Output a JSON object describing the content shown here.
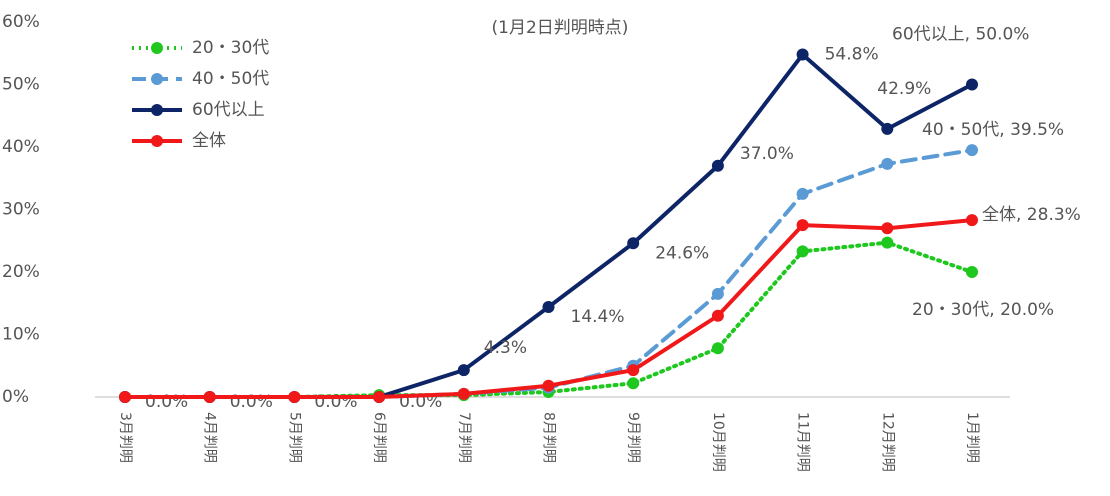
{
  "chart_data": {
    "type": "line",
    "title": "(1月2日判明時点)",
    "categories": [
      "3月判明",
      "4月判明",
      "5月判明",
      "6月判明",
      "7月判明",
      "8月判明",
      "9月判明",
      "10月判明",
      "11月判明",
      "12月判明",
      "1月判明"
    ],
    "ylim": [
      0,
      60
    ],
    "yticks": [
      {
        "value": 0,
        "label": "0%"
      },
      {
        "value": 10,
        "label": "10%"
      },
      {
        "value": 20,
        "label": "20%"
      },
      {
        "value": 30,
        "label": "30%"
      },
      {
        "value": 40,
        "label": "40%"
      },
      {
        "value": 50,
        "label": "50%"
      },
      {
        "value": 60,
        "label": "60%"
      }
    ],
    "legend": "top-left",
    "series": [
      {
        "name": "20・30代",
        "color": "#1ec81e",
        "line_style": "dotted",
        "values": [
          0,
          0,
          0,
          0.3,
          0.3,
          0.8,
          2.2,
          7.8,
          23.3,
          24.7,
          20.0
        ],
        "value_labels": [
          null,
          null,
          null,
          null,
          null,
          null,
          null,
          null,
          null,
          null,
          "20・30代, 20.0%"
        ]
      },
      {
        "name": "40・50代",
        "color": "#5b9bd5",
        "line_style": "dashed",
        "values": [
          0,
          0,
          0,
          0,
          0.5,
          1.5,
          5.0,
          16.5,
          32.5,
          37.3,
          39.5
        ],
        "value_labels": [
          null,
          null,
          null,
          null,
          null,
          null,
          null,
          null,
          null,
          null,
          "40・50代, 39.5%"
        ]
      },
      {
        "name": "60代以上",
        "color": "#0d2466",
        "line_style": "solid",
        "values": [
          0.0,
          0.0,
          0.0,
          0.0,
          4.3,
          14.4,
          24.6,
          37.0,
          54.8,
          42.9,
          50.0
        ],
        "value_labels": [
          "0.0%",
          "0.0%",
          "0.0%",
          "0.0%",
          "4.3%",
          "14.4%",
          "24.6%",
          "37.0%",
          "54.8%",
          "42.9%",
          "60代以上, 50.0%"
        ]
      },
      {
        "name": "全体",
        "color": "#f01818",
        "line_style": "solid",
        "values": [
          0,
          0,
          0,
          0,
          0.5,
          1.8,
          4.3,
          13.0,
          27.5,
          27.0,
          28.3
        ],
        "value_labels": [
          null,
          null,
          null,
          null,
          null,
          null,
          null,
          null,
          null,
          null,
          "全体, 28.3%"
        ]
      }
    ]
  }
}
